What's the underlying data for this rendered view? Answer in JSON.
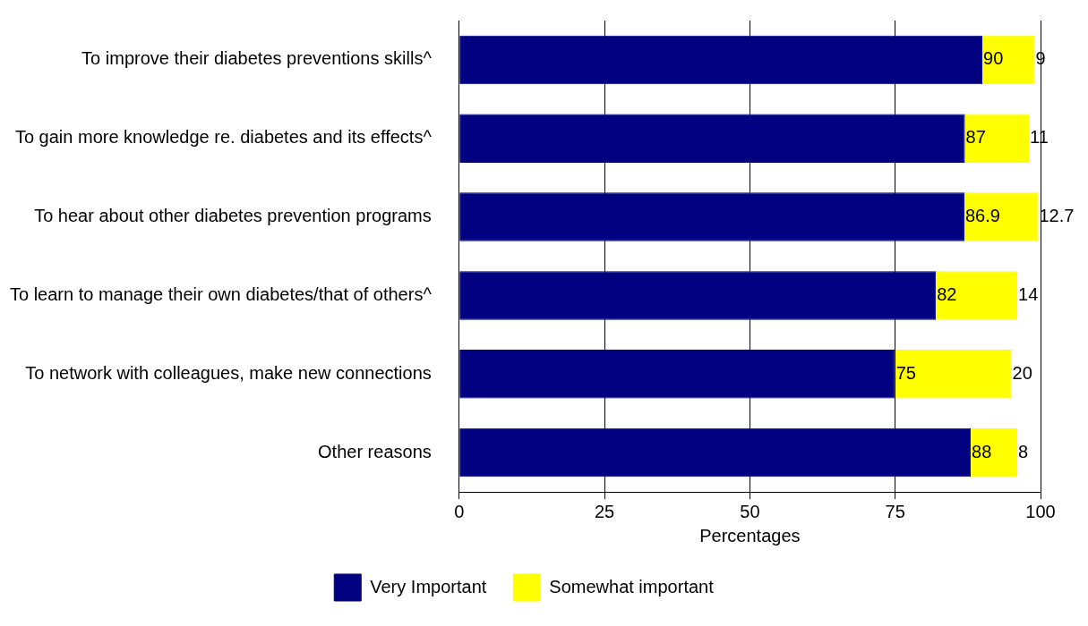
{
  "chart_data": {
    "type": "bar",
    "orientation": "horizontal",
    "stacked": true,
    "categories": [
      "To improve their diabetes preventions skills^",
      "To gain more knowledge re. diabetes and its effects^",
      "To hear about other diabetes prevention programs",
      "To learn to manage their own diabetes/that of others^",
      "To network with colleagues, make new connections",
      "Other reasons"
    ],
    "series": [
      {
        "name": "Very Important",
        "color": "#000080",
        "values": [
          90,
          87,
          86.9,
          82,
          75,
          88
        ]
      },
      {
        "name": "Somewhat important",
        "color": "#ffff00",
        "values": [
          9,
          11,
          12.7,
          14,
          20,
          8
        ]
      }
    ],
    "xlabel": "Percentages",
    "xlim": [
      0,
      100
    ],
    "xticks": [
      0,
      25,
      50,
      75,
      100
    ],
    "grid": "x",
    "legend": "bottom",
    "data_labels": true
  }
}
